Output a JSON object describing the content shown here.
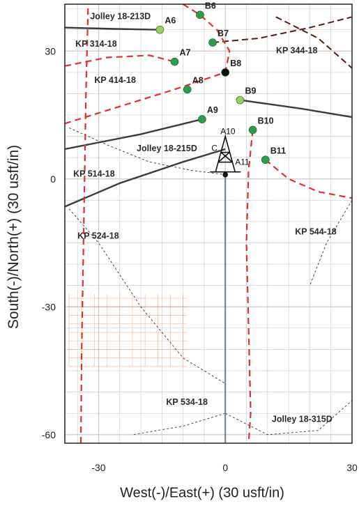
{
  "chart_data": {
    "type": "scatter",
    "xlabel": "West(-)/East(+) (30 usft/in)",
    "ylabel": "South(-)/North(+) (30 usft/in)",
    "xlim": [
      -38,
      30
    ],
    "ylim": [
      -62,
      41
    ],
    "xticks": [
      -30,
      0,
      30
    ],
    "yticks": [
      30,
      0,
      -30,
      -60
    ],
    "grid": true,
    "points": [
      {
        "label": "A6",
        "x": -15.5,
        "y": 35.0,
        "color": "#9ccc65"
      },
      {
        "label": "B6",
        "x": -6.0,
        "y": 38.5,
        "color": "#2e9d4b"
      },
      {
        "label": "B7",
        "x": -3.0,
        "y": 32.0,
        "color": "#2e9d4b"
      },
      {
        "label": "A7",
        "x": -12.0,
        "y": 27.5,
        "color": "#2e9d4b"
      },
      {
        "label": "B8",
        "x": 0.0,
        "y": 25.0,
        "color": "#111111"
      },
      {
        "label": "A8",
        "x": -9.0,
        "y": 21.0,
        "color": "#2e9d4b"
      },
      {
        "label": "B9",
        "x": 3.5,
        "y": 18.5,
        "color": "#9ccc65"
      },
      {
        "label": "A9",
        "x": -5.5,
        "y": 14.0,
        "color": "#2e9d4b"
      },
      {
        "label": "B10",
        "x": 6.5,
        "y": 11.5,
        "color": "#2e9d4b"
      },
      {
        "label": "B11",
        "x": 9.5,
        "y": 4.5,
        "color": "#2e9d4b"
      }
    ],
    "rig_labels": [
      "A10",
      "A11",
      "C"
    ],
    "well_labels": [
      {
        "label": "Jolley 18-213D",
        "x": -32.0,
        "y": 37.5
      },
      {
        "label": "KP 314-18",
        "x": -35.5,
        "y": 31.0
      },
      {
        "label": "KP 344-18",
        "x": 12.0,
        "y": 29.5
      },
      {
        "label": "KP 414-18",
        "x": -31.0,
        "y": 22.5
      },
      {
        "label": "Jolley 18-215D",
        "x": -21.0,
        "y": 6.5
      },
      {
        "label": "KP 514-18",
        "x": -36.0,
        "y": 0.5
      },
      {
        "label": "KP 524-18",
        "x": -35.0,
        "y": -14.0
      },
      {
        "label": "KP 544-18",
        "x": 16.5,
        "y": -13.0
      },
      {
        "label": "KP 534-18",
        "x": -14.0,
        "y": -53.0
      },
      {
        "label": "Jolley 18-315D",
        "x": 11.0,
        "y": -57.0
      }
    ]
  }
}
